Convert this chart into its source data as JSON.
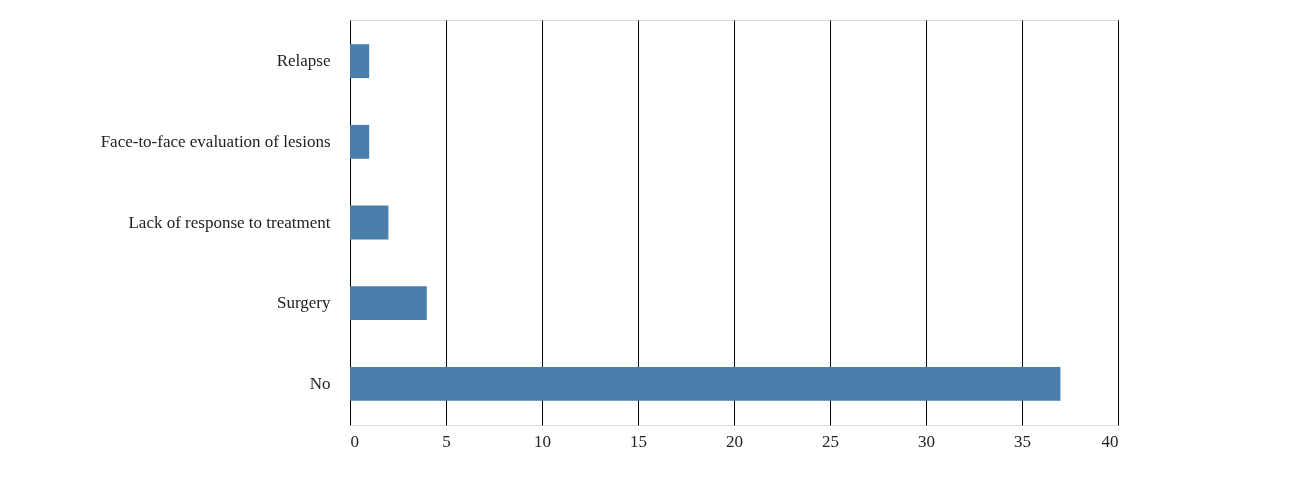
{
  "chart_data": {
    "type": "bar",
    "orientation": "horizontal",
    "categories": [
      "Relapse",
      "Face-to-face evaluation of lesions",
      "Lack of response to treatment",
      "Surgery",
      "No"
    ],
    "values": [
      1,
      1,
      2,
      4,
      37
    ],
    "color": "#4a7eac",
    "xlim": [
      0,
      40
    ],
    "xticks": [
      0,
      5,
      10,
      15,
      20,
      25,
      30,
      35,
      40
    ],
    "grid": "x"
  }
}
